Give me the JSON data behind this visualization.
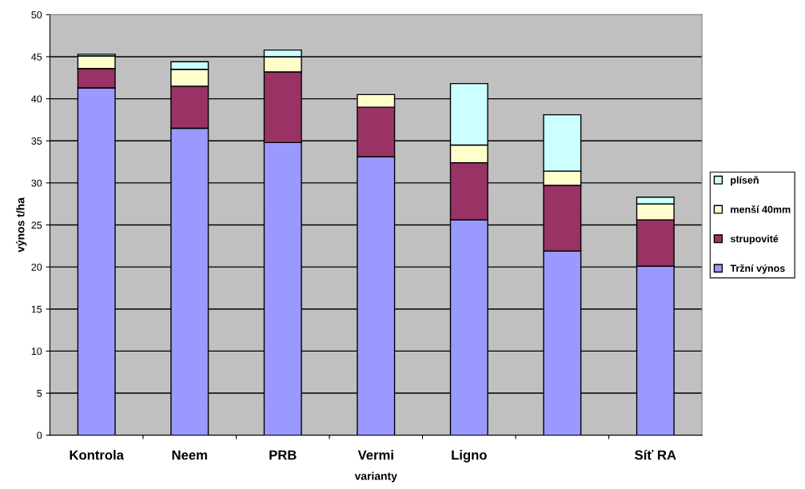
{
  "chart_data": {
    "type": "bar",
    "stacked": true,
    "xlabel": "varianty",
    "ylabel": "výnos t/ha",
    "categories": [
      "Kontrola",
      "Neem",
      "PRB",
      "Vermi",
      "Ligno",
      null,
      "Síť RA"
    ],
    "series": [
      {
        "name": "Tržní výnos",
        "color": "#9999ff",
        "values": [
          41.3,
          36.5,
          34.8,
          33.1,
          25.6,
          21.9,
          20.1
        ]
      },
      {
        "name": "strupovité",
        "color": "#993366",
        "values": [
          2.3,
          5.0,
          8.4,
          5.9,
          6.8,
          7.8,
          5.5
        ]
      },
      {
        "name": "menší 40mm",
        "color": "#ffffcc",
        "values": [
          1.5,
          2.0,
          1.8,
          1.5,
          2.1,
          1.7,
          1.9
        ]
      },
      {
        "name": "plíseň",
        "color": "#ccffff",
        "values": [
          0.2,
          0.9,
          0.8,
          null,
          7.3,
          6.7,
          0.8
        ]
      }
    ],
    "ylim": [
      0,
      50
    ],
    "yticks": [
      0,
      5,
      10,
      15,
      20,
      25,
      30,
      35,
      40,
      45,
      50
    ],
    "grid": "y",
    "legend": "right"
  }
}
